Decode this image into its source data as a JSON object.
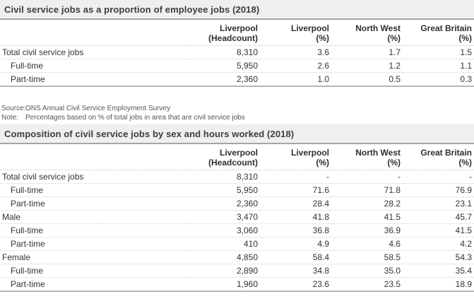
{
  "colors": {
    "title_bar_background": "#efefef",
    "title_bar_border": "#a5a5a5",
    "title_text": "#3d3d3d",
    "cell_text": "#333333",
    "row_divider_dotted": "#d2d2d2",
    "table_end_border": "#b4b7ba",
    "footnote_text": "#555555"
  },
  "tables": [
    {
      "title": "Civil service jobs as a proportion of employee jobs (2018)",
      "columns": [
        {
          "line1": "Liverpool",
          "line2": "(Headcount)"
        },
        {
          "line1": "Liverpool",
          "line2": "(%)"
        },
        {
          "line1": "North West",
          "line2": "(%)"
        },
        {
          "line1": "Great Britain",
          "line2": "(%)"
        }
      ],
      "rows": [
        {
          "label": "Total civil service jobs",
          "indent": false,
          "values": [
            "8,310",
            "3.6",
            "1.7",
            "1.5"
          ]
        },
        {
          "label": "Full-time",
          "indent": true,
          "values": [
            "5,950",
            "2.6",
            "1.2",
            "1.1"
          ]
        },
        {
          "label": "Part-time",
          "indent": true,
          "values": [
            "2,360",
            "1.0",
            "0.5",
            "0.3"
          ]
        }
      ],
      "footnotes": [
        {
          "label": "Source:",
          "text": "ONS Annual Civil Service Employment Survey"
        },
        {
          "label": "Note:",
          "text": "Percentages based on % of total jobs in area that are civil service jobs"
        }
      ]
    },
    {
      "title": "Composition of civil service jobs by sex and hours worked (2018)",
      "columns": [
        {
          "line1": "Liverpool",
          "line2": "(Headcount)"
        },
        {
          "line1": "Liverpool",
          "line2": "(%)"
        },
        {
          "line1": "North West",
          "line2": "(%)"
        },
        {
          "line1": "Great Britain",
          "line2": "(%)"
        }
      ],
      "rows": [
        {
          "label": "Total civil service jobs",
          "indent": false,
          "values": [
            "8,310",
            "-",
            "-",
            "-"
          ]
        },
        {
          "label": "Full-time",
          "indent": true,
          "values": [
            "5,950",
            "71.6",
            "71.8",
            "76.9"
          ]
        },
        {
          "label": "Part-time",
          "indent": true,
          "values": [
            "2,360",
            "28.4",
            "28.2",
            "23.1"
          ]
        },
        {
          "label": "Male",
          "indent": false,
          "values": [
            "3,470",
            "41.8",
            "41.5",
            "45.7"
          ]
        },
        {
          "label": "Full-time",
          "indent": true,
          "values": [
            "3,060",
            "36.8",
            "36.9",
            "41.5"
          ]
        },
        {
          "label": "Part-time",
          "indent": true,
          "values": [
            "410",
            "4.9",
            "4.6",
            "4.2"
          ]
        },
        {
          "label": "Female",
          "indent": false,
          "values": [
            "4,850",
            "58.4",
            "58.5",
            "54.3"
          ]
        },
        {
          "label": "Full-time",
          "indent": true,
          "values": [
            "2,890",
            "34.8",
            "35.0",
            "35.4"
          ]
        },
        {
          "label": "Part-time",
          "indent": true,
          "values": [
            "1,960",
            "23.6",
            "23.5",
            "18.9"
          ]
        }
      ],
      "footnotes": []
    }
  ]
}
